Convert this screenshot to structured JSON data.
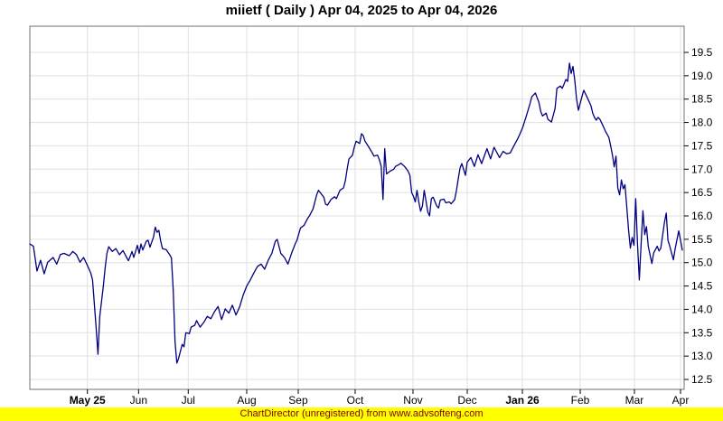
{
  "header": {
    "title": "miietf ( Daily ) Apr 04, 2025 to Apr 04, 2026"
  },
  "footer": {
    "text": "ChartDirector (unregistered) from www.advsofteng.com"
  },
  "colors": {
    "line": "#000080",
    "grid": "#e0e0e0",
    "axis": "#707070",
    "tick": "#000000",
    "label": "#000000",
    "footer_bg": "#ffff00",
    "footer_text": "#800000",
    "background": "#ffffff"
  },
  "chart_data": {
    "type": "line",
    "title": "miietf ( Daily ) Apr 04, 2025 to Apr 04, 2026",
    "xlabel": "",
    "ylabel": "",
    "y_axis_side": "right",
    "grid": true,
    "legend": "none",
    "x_range": [
      "2025-04-04",
      "2026-04-04"
    ],
    "ylim": [
      12.5,
      19.5
    ],
    "y_ticks": [
      12.5,
      13.0,
      13.5,
      14.0,
      14.5,
      15.0,
      15.5,
      16.0,
      16.5,
      17.0,
      17.5,
      18.0,
      18.5,
      19.0,
      19.5
    ],
    "x_ticks": [
      {
        "label": "May 25",
        "pos": 0.088,
        "bold": true
      },
      {
        "label": "Jun",
        "pos": 0.1662,
        "bold": false
      },
      {
        "label": "Jul",
        "pos": 0.2421,
        "bold": false
      },
      {
        "label": "Aug",
        "pos": 0.3315,
        "bold": false
      },
      {
        "label": "Sep",
        "pos": 0.4102,
        "bold": false
      },
      {
        "label": "Oct",
        "pos": 0.4972,
        "bold": false
      },
      {
        "label": "Nov",
        "pos": 0.5856,
        "bold": false
      },
      {
        "label": "Dec",
        "pos": 0.6685,
        "bold": false
      },
      {
        "label": "Jan 26",
        "pos": 0.7528,
        "bold": true
      },
      {
        "label": "Feb",
        "pos": 0.8412,
        "bold": false
      },
      {
        "label": "Mar",
        "pos": 0.924,
        "bold": false
      },
      {
        "label": "Apr",
        "pos": 0.9945,
        "bold": false
      }
    ],
    "series": [
      {
        "name": "miietf",
        "color": "#000080",
        "points": [
          [
            "2025-04-04",
            15.4
          ],
          [
            "2025-04-06",
            15.35
          ],
          [
            "2025-04-08",
            14.82
          ],
          [
            "2025-04-10",
            15.05
          ],
          [
            "2025-04-12",
            14.76
          ],
          [
            "2025-04-14",
            15.01
          ],
          [
            "2025-04-17",
            15.11
          ],
          [
            "2025-04-19",
            14.97
          ],
          [
            "2025-04-21",
            15.17
          ],
          [
            "2025-04-23",
            15.2
          ],
          [
            "2025-04-26",
            15.15
          ],
          [
            "2025-04-28",
            15.24
          ],
          [
            "2025-04-30",
            15.17
          ],
          [
            "2025-05-02",
            15.01
          ],
          [
            "2025-05-04",
            15.11
          ],
          [
            "2025-05-06",
            14.95
          ],
          [
            "2025-05-08",
            14.78
          ],
          [
            "2025-05-09",
            14.63
          ],
          [
            "2025-05-11",
            13.6
          ],
          [
            "2025-05-12",
            13.04
          ],
          [
            "2025-05-13",
            13.85
          ],
          [
            "2025-05-15",
            14.49
          ],
          [
            "2025-05-16",
            14.88
          ],
          [
            "2025-05-17",
            15.2
          ],
          [
            "2025-05-18",
            15.34
          ],
          [
            "2025-05-20",
            15.24
          ],
          [
            "2025-05-22",
            15.3
          ],
          [
            "2025-05-24",
            15.17
          ],
          [
            "2025-05-26",
            15.26
          ],
          [
            "2025-05-28",
            15.11
          ],
          [
            "2025-05-29",
            15.04
          ],
          [
            "2025-05-31",
            15.24
          ],
          [
            "2025-06-01",
            15.11
          ],
          [
            "2025-06-03",
            15.37
          ],
          [
            "2025-06-04",
            15.2
          ],
          [
            "2025-06-05",
            15.4
          ],
          [
            "2025-06-06",
            15.27
          ],
          [
            "2025-06-08",
            15.46
          ],
          [
            "2025-06-09",
            15.48
          ],
          [
            "2025-06-10",
            15.33
          ],
          [
            "2025-06-12",
            15.55
          ],
          [
            "2025-06-13",
            15.76
          ],
          [
            "2025-06-14",
            15.65
          ],
          [
            "2025-06-15",
            15.69
          ],
          [
            "2025-06-16",
            15.46
          ],
          [
            "2025-06-17",
            15.3
          ],
          [
            "2025-06-19",
            15.28
          ],
          [
            "2025-06-21",
            15.17
          ],
          [
            "2025-06-22",
            15.1
          ],
          [
            "2025-06-23",
            14.4
          ],
          [
            "2025-06-24",
            13.3
          ],
          [
            "2025-06-25",
            12.85
          ],
          [
            "2025-06-26",
            12.95
          ],
          [
            "2025-06-27",
            13.1
          ],
          [
            "2025-06-28",
            13.25
          ],
          [
            "2025-06-29",
            13.2
          ],
          [
            "2025-06-30",
            13.5
          ],
          [
            "2025-07-02",
            13.48
          ],
          [
            "2025-07-03",
            13.62
          ],
          [
            "2025-07-05",
            13.66
          ],
          [
            "2025-07-06",
            13.76
          ],
          [
            "2025-07-08",
            13.62
          ],
          [
            "2025-07-10",
            13.72
          ],
          [
            "2025-07-12",
            13.85
          ],
          [
            "2025-07-14",
            13.8
          ],
          [
            "2025-07-16",
            13.95
          ],
          [
            "2025-07-18",
            14.06
          ],
          [
            "2025-07-20",
            13.78
          ],
          [
            "2025-07-22",
            14.01
          ],
          [
            "2025-07-24",
            13.92
          ],
          [
            "2025-07-26",
            14.09
          ],
          [
            "2025-07-28",
            13.88
          ],
          [
            "2025-07-30",
            14.05
          ],
          [
            "2025-08-01",
            14.3
          ],
          [
            "2025-08-03",
            14.5
          ],
          [
            "2025-08-05",
            14.63
          ],
          [
            "2025-08-07",
            14.78
          ],
          [
            "2025-08-09",
            14.92
          ],
          [
            "2025-08-11",
            14.97
          ],
          [
            "2025-08-13",
            14.86
          ],
          [
            "2025-08-15",
            15.05
          ],
          [
            "2025-08-17",
            15.2
          ],
          [
            "2025-08-19",
            15.46
          ],
          [
            "2025-08-20",
            15.5
          ],
          [
            "2025-08-22",
            15.2
          ],
          [
            "2025-08-24",
            15.11
          ],
          [
            "2025-08-26",
            14.97
          ],
          [
            "2025-08-28",
            15.2
          ],
          [
            "2025-08-30",
            15.4
          ],
          [
            "2025-08-31",
            15.48
          ],
          [
            "2025-09-02",
            15.74
          ],
          [
            "2025-09-04",
            15.8
          ],
          [
            "2025-09-06",
            15.95
          ],
          [
            "2025-09-07",
            16.0
          ],
          [
            "2025-09-09",
            16.15
          ],
          [
            "2025-09-11",
            16.45
          ],
          [
            "2025-09-12",
            16.55
          ],
          [
            "2025-09-15",
            16.4
          ],
          [
            "2025-09-16",
            16.25
          ],
          [
            "2025-09-17",
            16.23
          ],
          [
            "2025-09-19",
            16.35
          ],
          [
            "2025-09-21",
            16.41
          ],
          [
            "2025-09-22",
            16.37
          ],
          [
            "2025-09-24",
            16.55
          ],
          [
            "2025-09-26",
            16.6
          ],
          [
            "2025-09-27",
            16.75
          ],
          [
            "2025-09-28",
            17.0
          ],
          [
            "2025-09-29",
            17.22
          ],
          [
            "2025-10-01",
            17.3
          ],
          [
            "2025-10-02",
            17.47
          ],
          [
            "2025-10-03",
            17.6
          ],
          [
            "2025-10-05",
            17.55
          ],
          [
            "2025-10-06",
            17.76
          ],
          [
            "2025-10-07",
            17.72
          ],
          [
            "2025-10-08",
            17.6
          ],
          [
            "2025-10-10",
            17.48
          ],
          [
            "2025-10-12",
            17.35
          ],
          [
            "2025-10-13",
            17.28
          ],
          [
            "2025-10-15",
            17.3
          ],
          [
            "2025-10-16",
            17.2
          ],
          [
            "2025-10-17",
            17.06
          ],
          [
            "2025-10-18",
            16.35
          ],
          [
            "2025-10-19",
            17.44
          ],
          [
            "2025-10-20",
            16.9
          ],
          [
            "2025-10-22",
            16.96
          ],
          [
            "2025-10-24",
            17.0
          ],
          [
            "2025-10-25",
            17.06
          ],
          [
            "2025-10-27",
            17.1
          ],
          [
            "2025-10-28",
            17.13
          ],
          [
            "2025-10-30",
            17.06
          ],
          [
            "2025-11-01",
            16.96
          ],
          [
            "2025-11-02",
            16.87
          ],
          [
            "2025-11-03",
            16.5
          ],
          [
            "2025-11-04",
            16.42
          ],
          [
            "2025-11-05",
            16.3
          ],
          [
            "2025-11-06",
            16.55
          ],
          [
            "2025-11-07",
            16.3
          ],
          [
            "2025-11-08",
            16.1
          ],
          [
            "2025-11-09",
            16.21
          ],
          [
            "2025-11-10",
            16.55
          ],
          [
            "2025-11-12",
            16.08
          ],
          [
            "2025-11-13",
            16.0
          ],
          [
            "2025-11-14",
            16.37
          ],
          [
            "2025-11-15",
            16.4
          ],
          [
            "2025-11-17",
            16.21
          ],
          [
            "2025-11-18",
            16.17
          ],
          [
            "2025-11-19",
            16.34
          ],
          [
            "2025-11-21",
            16.36
          ],
          [
            "2025-11-22",
            16.28
          ],
          [
            "2025-11-24",
            16.3
          ],
          [
            "2025-11-25",
            16.26
          ],
          [
            "2025-11-27",
            16.35
          ],
          [
            "2025-11-28",
            16.55
          ],
          [
            "2025-11-29",
            16.8
          ],
          [
            "2025-11-30",
            17.03
          ],
          [
            "2025-12-01",
            17.12
          ],
          [
            "2025-12-03",
            16.87
          ],
          [
            "2025-12-04",
            17.15
          ],
          [
            "2025-12-06",
            17.25
          ],
          [
            "2025-12-08",
            17.06
          ],
          [
            "2025-12-10",
            17.31
          ],
          [
            "2025-12-12",
            17.12
          ],
          [
            "2025-12-15",
            17.44
          ],
          [
            "2025-12-17",
            17.22
          ],
          [
            "2025-12-19",
            17.47
          ],
          [
            "2025-12-22",
            17.25
          ],
          [
            "2025-12-24",
            17.38
          ],
          [
            "2025-12-26",
            17.33
          ],
          [
            "2025-12-28",
            17.35
          ],
          [
            "2025-12-30",
            17.5
          ],
          [
            "2026-01-01",
            17.64
          ],
          [
            "2026-01-02",
            17.72
          ],
          [
            "2026-01-04",
            17.9
          ],
          [
            "2026-01-06",
            18.14
          ],
          [
            "2026-01-08",
            18.4
          ],
          [
            "2026-01-09",
            18.55
          ],
          [
            "2026-01-11",
            18.63
          ],
          [
            "2026-01-13",
            18.43
          ],
          [
            "2026-01-14",
            18.24
          ],
          [
            "2026-01-15",
            18.14
          ],
          [
            "2026-01-17",
            18.2
          ],
          [
            "2026-01-18",
            18.07
          ],
          [
            "2026-01-20",
            18.01
          ],
          [
            "2026-01-22",
            18.3
          ],
          [
            "2026-01-23",
            18.73
          ],
          [
            "2026-01-25",
            18.78
          ],
          [
            "2026-01-26",
            18.73
          ],
          [
            "2026-01-27",
            18.82
          ],
          [
            "2026-01-28",
            18.92
          ],
          [
            "2026-01-29",
            18.88
          ],
          [
            "2026-01-30",
            19.27
          ],
          [
            "2026-01-31",
            19.05
          ],
          [
            "2026-02-01",
            19.2
          ],
          [
            "2026-02-02",
            18.9
          ],
          [
            "2026-02-03",
            18.5
          ],
          [
            "2026-02-04",
            18.26
          ],
          [
            "2026-02-06",
            18.55
          ],
          [
            "2026-02-07",
            18.69
          ],
          [
            "2026-02-09",
            18.53
          ],
          [
            "2026-02-11",
            18.36
          ],
          [
            "2026-02-12",
            18.2
          ],
          [
            "2026-02-13",
            18.11
          ],
          [
            "2026-02-14",
            18.05
          ],
          [
            "2026-02-15",
            18.11
          ],
          [
            "2026-02-16",
            18.07
          ],
          [
            "2026-02-18",
            17.91
          ],
          [
            "2026-02-19",
            17.82
          ],
          [
            "2026-02-21",
            17.68
          ],
          [
            "2026-02-22",
            17.5
          ],
          [
            "2026-02-23",
            17.3
          ],
          [
            "2026-02-24",
            17.05
          ],
          [
            "2026-02-25",
            17.28
          ],
          [
            "2026-02-26",
            16.6
          ],
          [
            "2026-02-27",
            16.45
          ],
          [
            "2026-02-28",
            16.77
          ],
          [
            "2026-03-01",
            16.58
          ],
          [
            "2026-03-02",
            16.67
          ],
          [
            "2026-03-03",
            16.2
          ],
          [
            "2026-03-04",
            15.7
          ],
          [
            "2026-03-05",
            15.31
          ],
          [
            "2026-03-06",
            15.54
          ],
          [
            "2026-03-07",
            15.37
          ],
          [
            "2026-03-08",
            16.37
          ],
          [
            "2026-03-09",
            15.4
          ],
          [
            "2026-03-10",
            14.63
          ],
          [
            "2026-03-11",
            15.4
          ],
          [
            "2026-03-12",
            16.11
          ],
          [
            "2026-03-13",
            15.6
          ],
          [
            "2026-03-14",
            15.77
          ],
          [
            "2026-03-15",
            15.35
          ],
          [
            "2026-03-17",
            14.98
          ],
          [
            "2026-03-18",
            15.21
          ],
          [
            "2026-03-20",
            15.35
          ],
          [
            "2026-03-21",
            15.25
          ],
          [
            "2026-03-22",
            15.31
          ],
          [
            "2026-03-24",
            15.86
          ],
          [
            "2026-03-25",
            16.06
          ],
          [
            "2026-03-26",
            15.48
          ],
          [
            "2026-03-27",
            15.35
          ],
          [
            "2026-03-29",
            15.06
          ],
          [
            "2026-03-30",
            15.3
          ],
          [
            "2026-04-01",
            15.68
          ],
          [
            "2026-04-03",
            15.27
          ]
        ]
      }
    ]
  }
}
